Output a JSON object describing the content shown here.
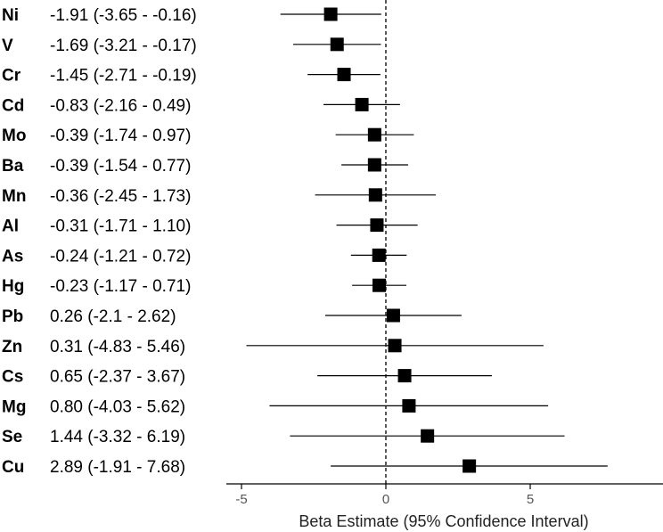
{
  "chart_data": {
    "type": "forest",
    "xlabel": "Beta Estimate (95% Confidence Interval)",
    "xlim": [
      -10,
      10
    ],
    "xticks": [
      -5,
      0,
      5
    ],
    "xtick_labels": [
      "-5",
      "0",
      "5"
    ],
    "reference_line": 0,
    "rows": [
      {
        "element": "Ni",
        "estimate": -1.91,
        "lower": -3.65,
        "upper": -0.16,
        "label": "-1.91 (-3.65 - -0.16)"
      },
      {
        "element": "V",
        "estimate": -1.69,
        "lower": -3.21,
        "upper": -0.17,
        "label": "-1.69 (-3.21 - -0.17)"
      },
      {
        "element": "Cr",
        "estimate": -1.45,
        "lower": -2.71,
        "upper": -0.19,
        "label": "-1.45 (-2.71 - -0.19)"
      },
      {
        "element": "Cd",
        "estimate": -0.83,
        "lower": -2.16,
        "upper": 0.49,
        "label": "-0.83 (-2.16 - 0.49)"
      },
      {
        "element": "Mo",
        "estimate": -0.39,
        "lower": -1.74,
        "upper": 0.97,
        "label": "-0.39 (-1.74 - 0.97)"
      },
      {
        "element": "Ba",
        "estimate": -0.39,
        "lower": -1.54,
        "upper": 0.77,
        "label": "-0.39 (-1.54 - 0.77)"
      },
      {
        "element": "Mn",
        "estimate": -0.36,
        "lower": -2.45,
        "upper": 1.73,
        "label": "-0.36 (-2.45 - 1.73)"
      },
      {
        "element": "Al",
        "estimate": -0.31,
        "lower": -1.71,
        "upper": 1.1,
        "label": "-0.31 (-1.71 - 1.10)"
      },
      {
        "element": "As",
        "estimate": -0.24,
        "lower": -1.21,
        "upper": 0.72,
        "label": "-0.24 (-1.21 - 0.72)"
      },
      {
        "element": "Hg",
        "estimate": -0.23,
        "lower": -1.17,
        "upper": 0.71,
        "label": "-0.23 (-1.17 - 0.71)"
      },
      {
        "element": "Pb",
        "estimate": 0.26,
        "lower": -2.1,
        "upper": 2.62,
        "label": "0.26 (-2.1 - 2.62)"
      },
      {
        "element": "Zn",
        "estimate": 0.31,
        "lower": -4.83,
        "upper": 5.46,
        "label": "0.31 (-4.83 - 5.46)"
      },
      {
        "element": "Cs",
        "estimate": 0.65,
        "lower": -2.37,
        "upper": 3.67,
        "label": "0.65 (-2.37 - 3.67)"
      },
      {
        "element": "Mg",
        "estimate": 0.8,
        "lower": -4.03,
        "upper": 5.62,
        "label": "0.80 (-4.03 - 5.62)"
      },
      {
        "element": "Se",
        "estimate": 1.44,
        "lower": -3.32,
        "upper": 6.19,
        "label": "1.44 (-3.32 - 6.19)"
      },
      {
        "element": "Cu",
        "estimate": 2.89,
        "lower": -1.91,
        "upper": 7.68,
        "label": "2.89 (-1.91 - 7.68)"
      }
    ],
    "colors": {
      "marker": "#000000",
      "line": "#000000",
      "axis": "#000000"
    }
  }
}
